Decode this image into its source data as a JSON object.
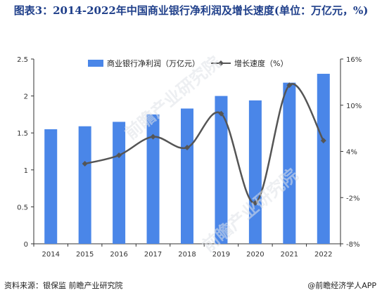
{
  "title": "图表3：2014-2022年中国商业银行净利润及增长速度(单位：万亿元，%)",
  "footer": {
    "source": "资料来源：银保监 前瞻产业研究院",
    "brand": "@前瞻经济学人APP"
  },
  "watermark": "前瞻产业研究院",
  "colors": {
    "bar": "#4a86e8",
    "line": "#555555"
  },
  "chart_data": {
    "type": "bar",
    "categories": [
      "2014",
      "2015",
      "2016",
      "2017",
      "2018",
      "2019",
      "2020",
      "2021",
      "2022"
    ],
    "series": [
      {
        "name": "商业银行净利润（万亿元）",
        "type": "bar",
        "axis": "left",
        "values": [
          1.55,
          1.59,
          1.65,
          1.75,
          1.83,
          2.0,
          1.94,
          2.18,
          2.3
        ]
      },
      {
        "name": "增长速度（%）",
        "type": "line",
        "axis": "right",
        "values": [
          null,
          2.4,
          3.5,
          5.9,
          4.5,
          8.9,
          -2.7,
          12.6,
          5.4
        ]
      }
    ],
    "y_left": {
      "min": 0,
      "max": 2.5,
      "ticks": [
        "0",
        "0.5",
        "1",
        "1.5",
        "2",
        "2.5"
      ]
    },
    "y_right": {
      "min": -8,
      "max": 16,
      "ticks": [
        "-8%",
        "-2%",
        "4%",
        "10%",
        "16%"
      ]
    },
    "legend_position": "top",
    "grid": false
  }
}
